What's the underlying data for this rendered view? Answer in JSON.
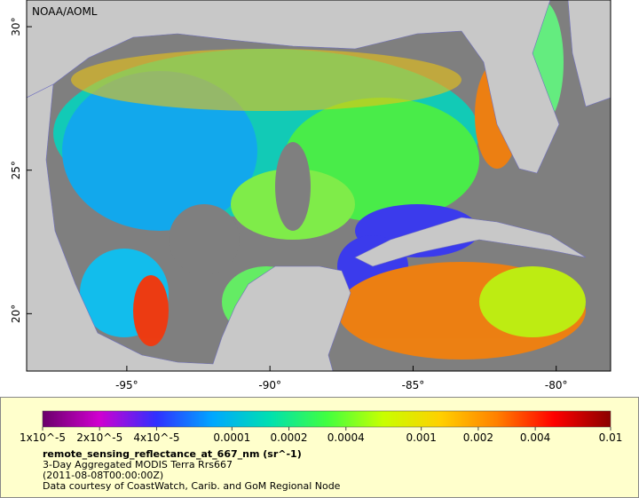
{
  "map": {
    "credit": "NOAA/AOML",
    "xlim": [
      -98.5,
      -78.1
    ],
    "ylim": [
      18,
      30.93
    ],
    "xticks": [
      {
        "value": -95,
        "label": "-95°"
      },
      {
        "value": -90,
        "label": "-90°"
      },
      {
        "value": -85,
        "label": "-85°"
      },
      {
        "value": -80,
        "label": "-80°"
      }
    ],
    "yticks": [
      {
        "value": 20,
        "label": "20°"
      },
      {
        "value": 25,
        "label": "25°"
      },
      {
        "value": 30,
        "label": "30°"
      }
    ]
  },
  "colorbar": {
    "scale": "log",
    "range": [
      1e-05,
      0.01
    ],
    "colors": [
      "#6a006a",
      "#d000d0",
      "#3030ff",
      "#00a8ff",
      "#00e0b0",
      "#40ff40",
      "#c8ff00",
      "#ffd000",
      "#ff8000",
      "#ff0000",
      "#8b0000"
    ],
    "ticks": [
      {
        "value": 1e-05,
        "label": "1x10^-5"
      },
      {
        "value": 2e-05,
        "label": "2x10^-5"
      },
      {
        "value": 4e-05,
        "label": "4x10^-5"
      },
      0.0001,
      0.0002,
      0.0004,
      0.001,
      0.002,
      0.004,
      0.01
    ]
  },
  "caption": {
    "title": "remote_sensing_reflectance_at_667_nm (sr^-1)",
    "lines": [
      "3-Day Aggregated MODIS Terra Rrs667",
      "(2011-08-08T00:00:00Z)",
      "Data courtesy of CoastWatch, Carib. and GoM Regional Node"
    ]
  }
}
